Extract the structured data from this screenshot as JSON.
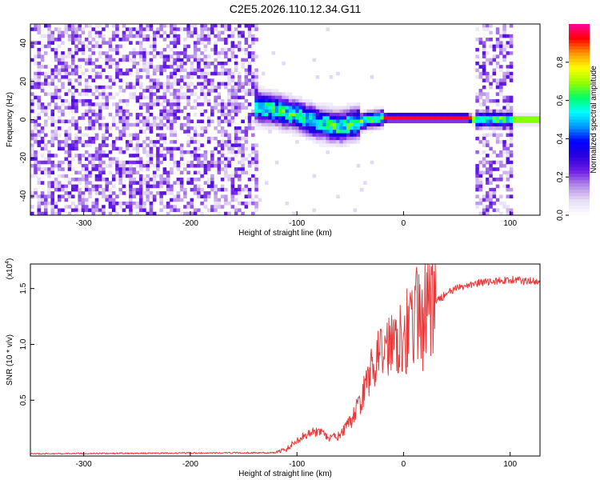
{
  "title": "C2E5.2026.110.12.34.G11",
  "colors": {
    "snr_line": "#e8383a",
    "axis": "#000000",
    "cmap": [
      "#ffffff",
      "#e6dcf5",
      "#b48ce6",
      "#6e1ee6",
      "#2a00dc",
      "#0000ff",
      "#0096ff",
      "#00ffff",
      "#00ff64",
      "#96ff00",
      "#ffff00",
      "#ff9600",
      "#ff0000",
      "#ff00a0"
    ]
  },
  "chart_data": [
    {
      "type": "heatmap",
      "xlabel": "Height of straight line (km)",
      "ylabel": "Frequency (Hz)",
      "xlim": [
        -350,
        128
      ],
      "ylim": [
        -50,
        50
      ],
      "x_ticks": [
        -300,
        -200,
        -100,
        0,
        100
      ],
      "x_tick_labels": [
        "-300",
        "-200",
        "-100",
        "0",
        "100"
      ],
      "y_ticks": [
        -40,
        -20,
        0,
        20,
        40
      ],
      "y_tick_labels": [
        "-40",
        "-20",
        "0",
        "20",
        "40"
      ],
      "colorbar": {
        "label": "Normalized spectral amplitude",
        "range": [
          0,
          1
        ],
        "ticks": [
          0.0,
          0.2,
          0.4,
          0.6,
          0.8
        ],
        "tick_labels": [
          "0.0",
          "0.2",
          "0.4",
          "0.6",
          "0.8"
        ]
      },
      "ridge": {
        "x": [
          -140,
          -120,
          -100,
          -80,
          -60,
          -45,
          -30,
          -15,
          0,
          20,
          40,
          60,
          66,
          100,
          108,
          128
        ],
        "freq": [
          7,
          5,
          2,
          -2,
          -4,
          -2,
          0,
          1,
          1,
          1,
          1,
          1,
          0,
          0,
          0,
          0
        ]
      },
      "noise_regions": [
        {
          "x": [
            -350,
            -135
          ],
          "level": 0.12
        },
        {
          "x": [
            67,
            103
          ],
          "level": 0.12
        }
      ]
    },
    {
      "type": "line",
      "xlabel": "Height of straight line (km)",
      "ylabel": "SNR (10 * v/v)",
      "multiplier_label": "(x10",
      "multiplier_exp": "4",
      "multiplier_close": ")",
      "xlim": [
        -350,
        128
      ],
      "ylim": [
        0,
        1.72
      ],
      "x_ticks": [
        -300,
        -200,
        -100,
        0,
        100
      ],
      "x_tick_labels": [
        "-300",
        "-200",
        "-100",
        "0",
        "100"
      ],
      "y_ticks": [
        0.5,
        1.0,
        1.5
      ],
      "y_tick_labels": [
        "0.5",
        "1.0",
        "1.5"
      ],
      "envelope": {
        "x": [
          -350,
          -120,
          -110,
          -100,
          -90,
          -80,
          -70,
          -60,
          -50,
          -40,
          -30,
          -20,
          -10,
          0,
          10,
          20,
          30,
          40,
          50,
          60,
          70,
          80,
          90,
          100,
          110,
          128
        ],
        "y": [
          0.02,
          0.03,
          0.06,
          0.14,
          0.2,
          0.22,
          0.16,
          0.18,
          0.3,
          0.5,
          0.78,
          0.95,
          1.05,
          1.12,
          1.2,
          1.3,
          1.38,
          1.45,
          1.5,
          1.53,
          1.55,
          1.56,
          1.57,
          1.58,
          1.57,
          1.57
        ]
      }
    }
  ]
}
